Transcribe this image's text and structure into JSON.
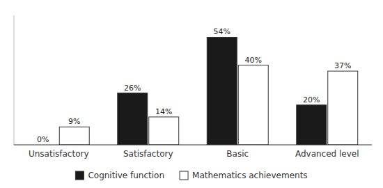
{
  "chart_data": {
    "type": "bar",
    "categories": [
      "Unsatisfactory",
      "Satisfactory",
      "Basic",
      "Advanced level"
    ],
    "series": [
      {
        "name": "Cognitive function",
        "color": "#1a1a1a",
        "values": [
          0,
          26,
          54,
          20
        ],
        "value_labels": [
          "0%",
          "26%",
          "54%",
          "20%"
        ]
      },
      {
        "name": "Mathematics achievements",
        "color": "#ffffff",
        "values": [
          9,
          14,
          40,
          37
        ],
        "value_labels": [
          "9%",
          "14%",
          "40%",
          "37%"
        ]
      }
    ],
    "ylim": [
      0,
      65
    ],
    "data_labels": true,
    "tick_labels": "x",
    "grid": false,
    "legend": "bottom"
  }
}
